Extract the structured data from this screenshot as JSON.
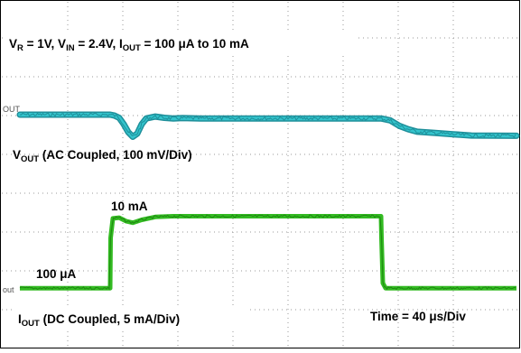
{
  "title": {
    "p1": "V",
    "s1": "R",
    "p2": " = 1V, V",
    "s2": "IN",
    "p3": " = 2.4V, I",
    "s3": "OUT",
    "p4": " = 100 μA to 10 mA"
  },
  "vout_label": {
    "p1": "V",
    "s1": "OUT",
    "p2": " (AC Coupled, 100 mV/Div)"
  },
  "iout_label": {
    "p1": "I",
    "s1": "OUT",
    "p2": " (DC Coupled, 5 mA/Div)"
  },
  "time_label": "Time = 40 μs/Div",
  "annotations": {
    "high": "10 mA",
    "low": "100 μA"
  },
  "channel_markers": {
    "vout": "OUT",
    "iout": "out"
  },
  "colors": {
    "vout_trace": "#33c4cc",
    "vout_trace_dark": "#1f8f9a",
    "iout_trace": "#33bb22",
    "grid": "#9a9a9a"
  },
  "chart_data": {
    "type": "line",
    "series": [
      {
        "name": "VOUT (AC Coupled, 100 mV/Div)",
        "unit": "mV (offset)",
        "x": [
          0,
          100,
          105,
          110,
          115,
          120,
          125,
          130,
          135,
          140,
          150,
          160,
          170,
          180,
          200,
          400,
          410,
          420,
          430,
          440,
          460,
          480,
          500,
          550
        ],
        "y": [
          0,
          0,
          3,
          10,
          30,
          55,
          70,
          60,
          30,
          12,
          6,
          10,
          12,
          11,
          12,
          12,
          18,
          35,
          46,
          54,
          58,
          62,
          66,
          67
        ]
      },
      {
        "name": "IOUT (DC Coupled, 5 mA/Div)",
        "unit": "mA",
        "x": [
          0,
          100,
          100.5,
          103,
          110,
          118,
          125,
          135,
          150,
          170,
          200,
          400,
          400.5,
          402,
          405,
          550
        ],
        "y": [
          0.1,
          0.1,
          7.0,
          9.7,
          9.8,
          9.3,
          9.1,
          9.5,
          9.9,
          10.0,
          10.0,
          10.0,
          7.0,
          0.8,
          0.1,
          0.1
        ]
      }
    ],
    "xlabel": "Time = 40 μs/Div",
    "grid": true
  }
}
